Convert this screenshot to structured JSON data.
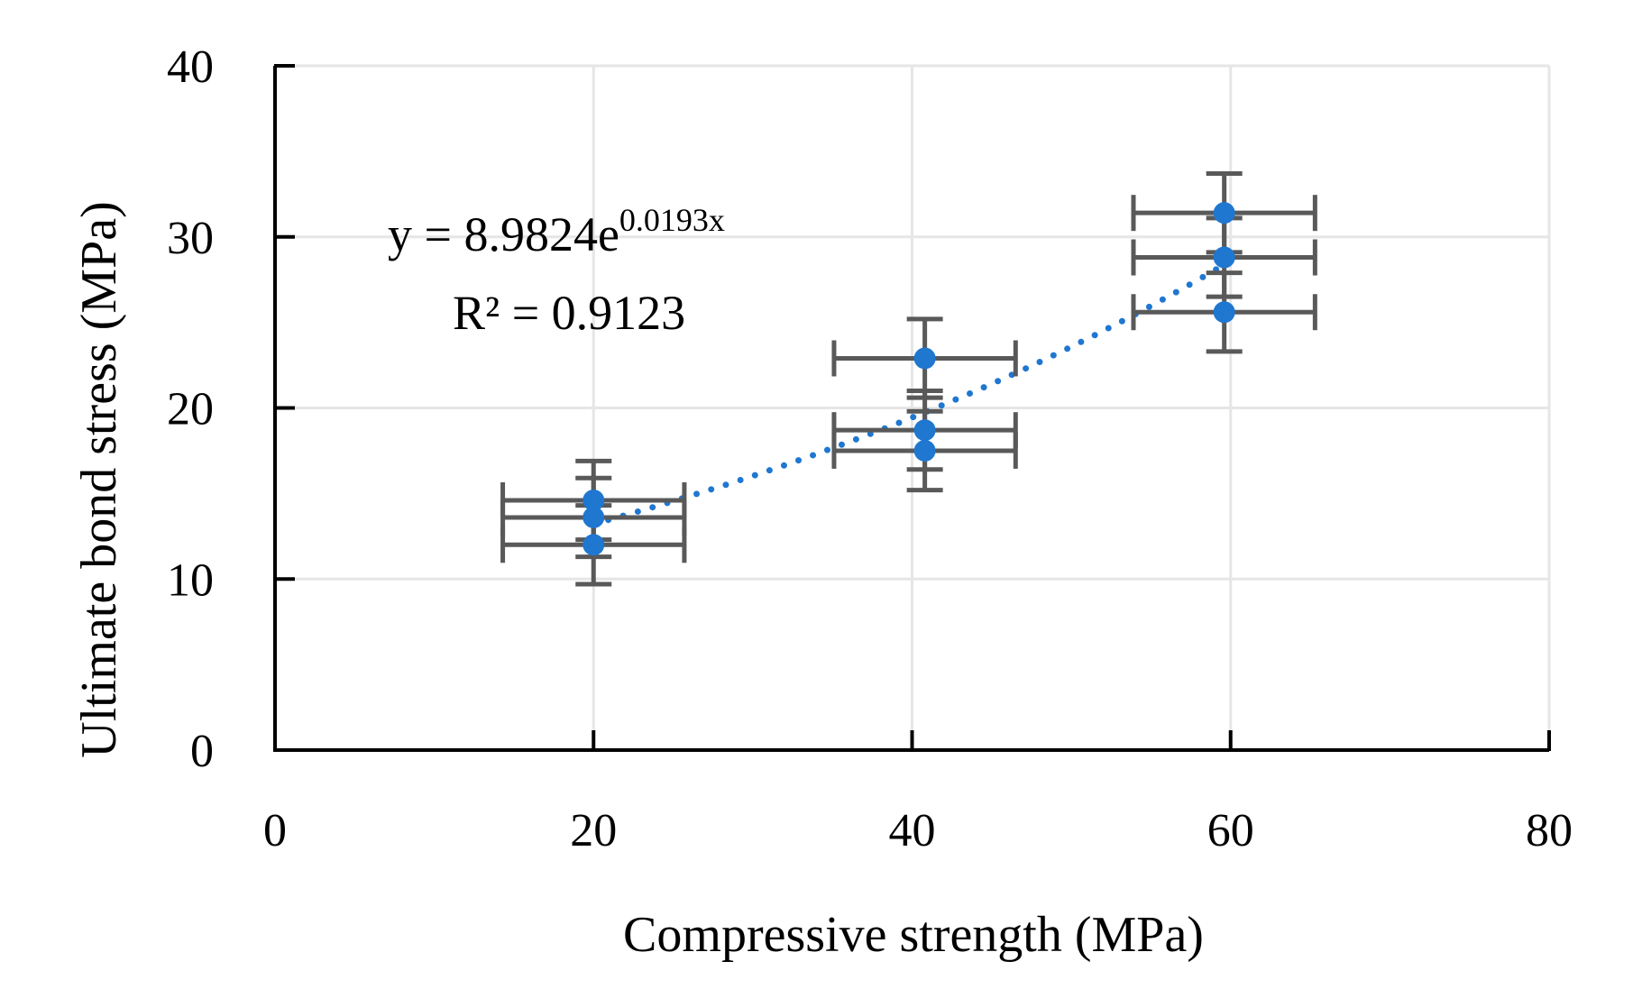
{
  "chart_data": {
    "type": "scatter",
    "xlabel": "Compressive strength (MPa)",
    "ylabel": "Ultimate bond stress (MPa)",
    "xlim": [
      0,
      80
    ],
    "ylim": [
      0,
      40
    ],
    "xticks": [
      0,
      20,
      40,
      60,
      80
    ],
    "yticks": [
      0,
      10,
      20,
      30,
      40
    ],
    "grid": true,
    "series": [
      {
        "color": "#1f77d0",
        "points": [
          {
            "x": 20.0,
            "y": 14.6,
            "xerr": 5.7,
            "yerr": 2.3
          },
          {
            "x": 20.0,
            "y": 13.6,
            "xerr": 5.7,
            "yerr": 2.3
          },
          {
            "x": 20.0,
            "y": 12.0,
            "xerr": 5.7,
            "yerr": 2.3
          },
          {
            "x": 40.8,
            "y": 22.9,
            "xerr": 5.7,
            "yerr": 2.3
          },
          {
            "x": 40.8,
            "y": 18.7,
            "xerr": 5.7,
            "yerr": 2.3
          },
          {
            "x": 40.8,
            "y": 17.5,
            "xerr": 5.7,
            "yerr": 2.3
          },
          {
            "x": 59.6,
            "y": 31.4,
            "xerr": 5.7,
            "yerr": 2.3
          },
          {
            "x": 59.6,
            "y": 28.8,
            "xerr": 5.7,
            "yerr": 2.3
          },
          {
            "x": 59.6,
            "y": 25.6,
            "xerr": 5.7,
            "yerr": 2.3
          }
        ]
      }
    ],
    "trendline": {
      "type": "exponential",
      "a": 8.9824,
      "b": 0.0193,
      "x_range": [
        20.0,
        59.6
      ],
      "style": "dotted",
      "color": "#1f77d0"
    },
    "annotations": {
      "equation_base": "y = 8.9824e",
      "equation_exponent": "0.0193x",
      "r_squared": "R² = 0.9123"
    },
    "colors": {
      "marker": "#1f77d0",
      "error_bar": "#595959",
      "grid": "#e6e6e6",
      "axis": "#000000"
    }
  }
}
